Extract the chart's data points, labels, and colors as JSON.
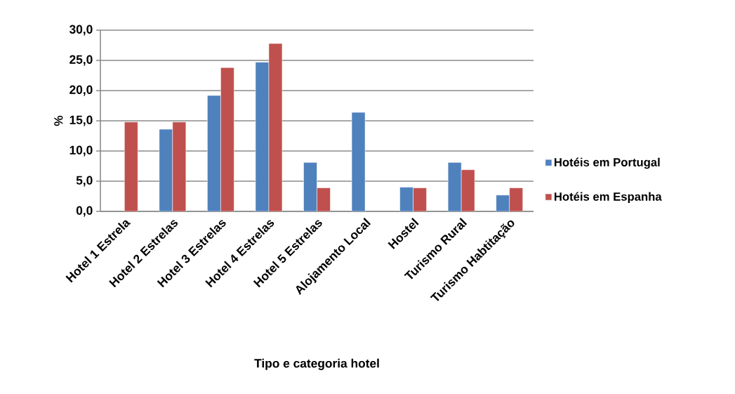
{
  "chart_data": {
    "type": "bar",
    "xlabel": "Tipo e categoria hotel",
    "ylabel": "%",
    "categories": [
      "Hotel 1 Estrela",
      "Hotel 2 Estrelas",
      "Hotel 3 Estrelas",
      "Hotel 4 Estrelas",
      "Hotel 5 Estrelas",
      "Alojamento Local",
      "Hostel",
      "Turismo Rural",
      "Turismo Habtitação"
    ],
    "series": [
      {
        "name": "Hotéis em Portugal",
        "color": "#4f81bd",
        "values": [
          null,
          13.6,
          19.2,
          24.7,
          8.1,
          16.4,
          4.0,
          8.1,
          2.7
        ]
      },
      {
        "name": "Hotéis em Espanha",
        "color": "#c0504d",
        "values": [
          14.8,
          14.8,
          23.8,
          27.8,
          3.9,
          null,
          3.9,
          6.9,
          3.9
        ]
      }
    ],
    "ylim": [
      0,
      30
    ],
    "yticks": [
      {
        "value": 0,
        "label": "0,0"
      },
      {
        "value": 5,
        "label": "5,0"
      },
      {
        "value": 10,
        "label": "10,0"
      },
      {
        "value": 15,
        "label": "15,0"
      },
      {
        "value": 20,
        "label": "20,0"
      },
      {
        "value": 25,
        "label": "25,0"
      },
      {
        "value": 30,
        "label": "30,0"
      }
    ],
    "grid": "y",
    "legend": "right"
  }
}
